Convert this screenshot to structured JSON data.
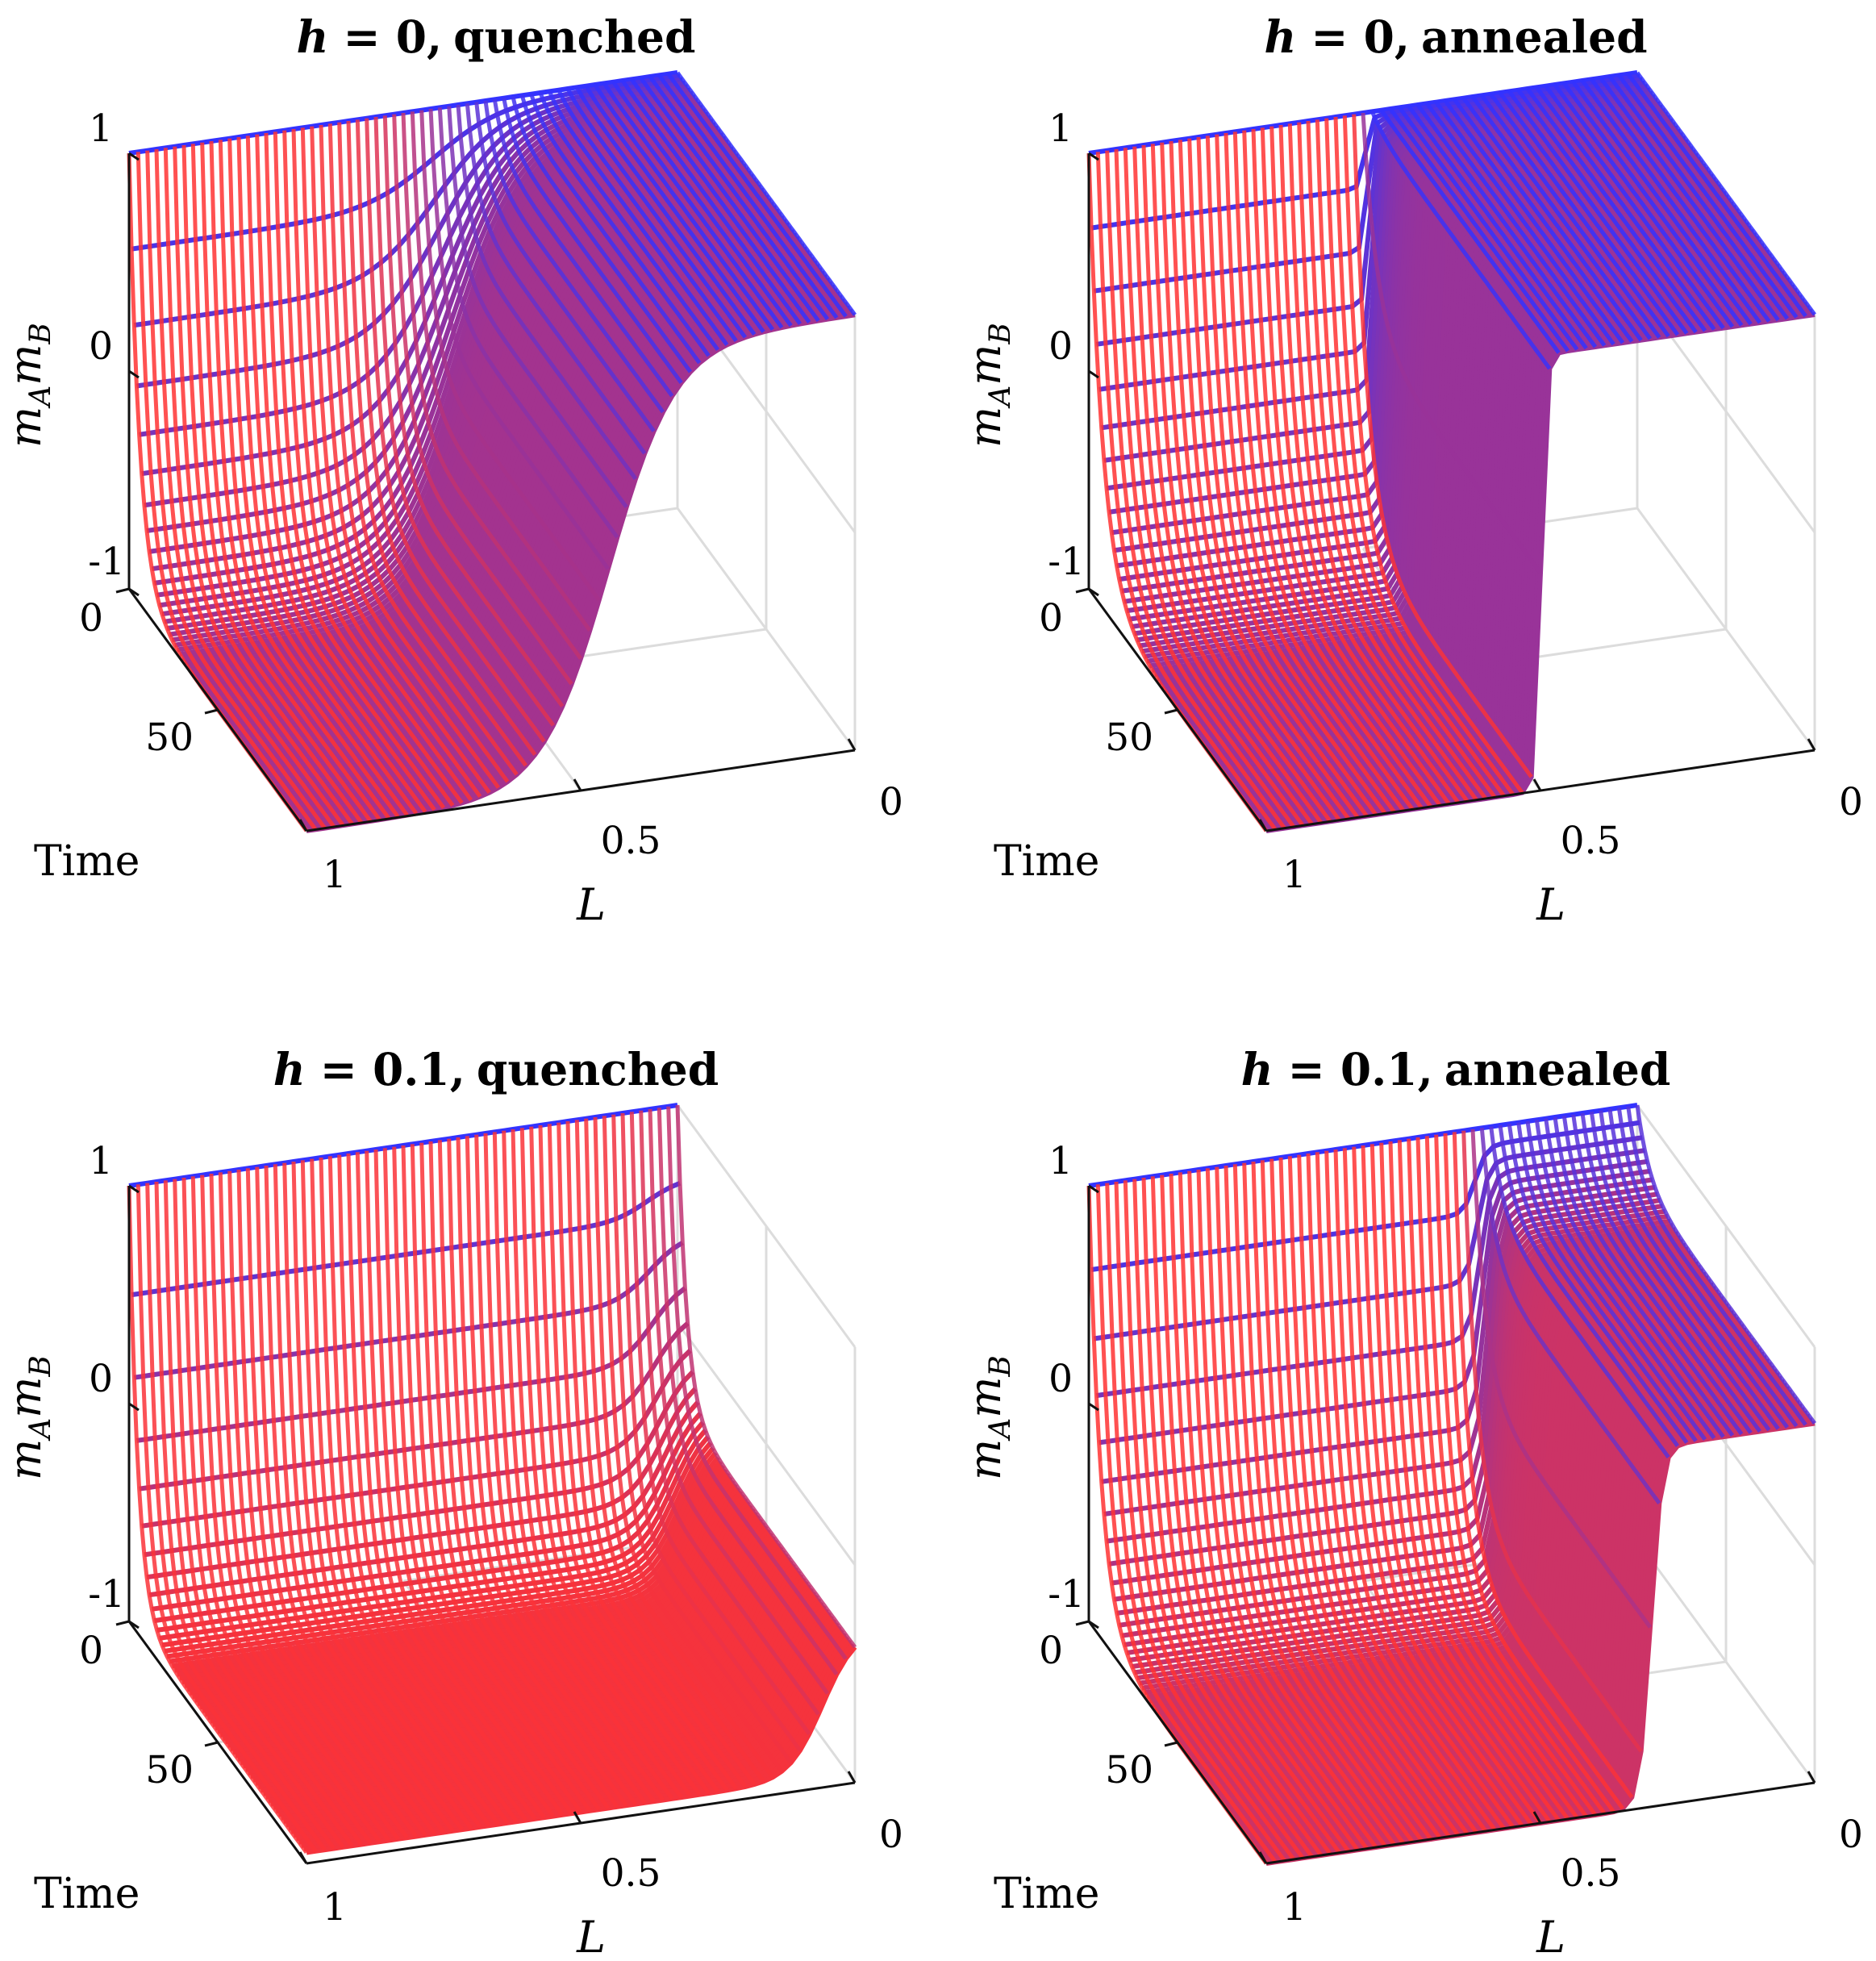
{
  "chart_data": [
    {
      "type": "surface3d",
      "panel": "top-left",
      "title_var": "h",
      "title_value": "= 0,",
      "title_rest": "quenched",
      "h": 0,
      "scheme": "quenched",
      "xlabel": "L",
      "ylabel": "Time",
      "zlabel": "m_A m_B",
      "zlabel_main": "m",
      "zlabel_sub1": "A",
      "zlabel_mid": "m",
      "zlabel_sub2": "B",
      "xticks": [
        "1",
        "0.5",
        "0"
      ],
      "yticks": [
        "0",
        "50"
      ],
      "zticks": [
        "1",
        "0",
        "-1"
      ],
      "xlim": [
        0,
        1
      ],
      "ylim": [
        0,
        100
      ],
      "zlim": [
        -1,
        1
      ],
      "colormap": [
        "#ff3333",
        "#3333ff"
      ],
      "surface": {
        "L_flip": 0.45,
        "final_low": -1.0,
        "final_high": 1.0,
        "sharpness": 0.06,
        "rate": 0.06
      }
    },
    {
      "type": "surface3d",
      "panel": "top-right",
      "title_var": "h",
      "title_value": "= 0,",
      "title_rest": "annealed",
      "h": 0,
      "scheme": "annealed",
      "xlabel": "L",
      "ylabel": "Time",
      "zlabel": "m_A m_B",
      "zlabel_main": "m",
      "zlabel_sub1": "A",
      "zlabel_mid": "m",
      "zlabel_sub2": "B",
      "xticks": [
        "1",
        "0.5",
        "0"
      ],
      "yticks": [
        "0",
        "50"
      ],
      "zticks": [
        "1",
        "0",
        "-1"
      ],
      "xlim": [
        0,
        1
      ],
      "ylim": [
        0,
        100
      ],
      "zlim": [
        -1,
        1
      ],
      "colormap": [
        "#ff3333",
        "#3333ff"
      ],
      "surface": {
        "L_flip": 0.5,
        "final_low": -1.0,
        "final_high": 1.0,
        "sharpness": 0.005,
        "rate": 0.08
      }
    },
    {
      "type": "surface3d",
      "panel": "bottom-left",
      "title_var": "h",
      "title_value": "= 0.1,",
      "title_rest": "quenched",
      "h": 0.1,
      "scheme": "quenched",
      "xlabel": "L",
      "ylabel": "Time",
      "zlabel": "m_A m_B",
      "zlabel_main": "m",
      "zlabel_sub1": "A",
      "zlabel_mid": "m",
      "zlabel_sub2": "B",
      "xticks": [
        "1",
        "0.5",
        "0"
      ],
      "yticks": [
        "0",
        "50"
      ],
      "zticks": [
        "1",
        "0",
        "-1"
      ],
      "xlim": [
        0,
        1
      ],
      "ylim": [
        0,
        100
      ],
      "zlim": [
        -1,
        1
      ],
      "colormap": [
        "#ff3333",
        "#3333ff"
      ],
      "surface": {
        "L_flip": 0.06,
        "final_low": -0.95,
        "final_high": -0.3,
        "sharpness": 0.03,
        "rate": 0.05
      }
    },
    {
      "type": "surface3d",
      "panel": "bottom-right",
      "title_var": "h",
      "title_value": "= 0.1,",
      "title_rest": "annealed",
      "h": 0.1,
      "scheme": "annealed",
      "xlabel": "L",
      "ylabel": "Time",
      "zlabel": "m_A m_B",
      "zlabel_main": "m",
      "zlabel_sub1": "A",
      "zlabel_mid": "m",
      "zlabel_sub2": "B",
      "xticks": [
        "1",
        "0.5",
        "0"
      ],
      "yticks": [
        "0",
        "50"
      ],
      "zticks": [
        "1",
        "0",
        "-1"
      ],
      "xlim": [
        0,
        1
      ],
      "ylim": [
        0,
        100
      ],
      "zlim": [
        -1,
        1
      ],
      "colormap": [
        "#ff3333",
        "#3333ff"
      ],
      "surface": {
        "L_flip": 0.3,
        "final_low": -1.0,
        "final_high": 0.65,
        "sharpness": 0.01,
        "rate": 0.07
      }
    }
  ]
}
